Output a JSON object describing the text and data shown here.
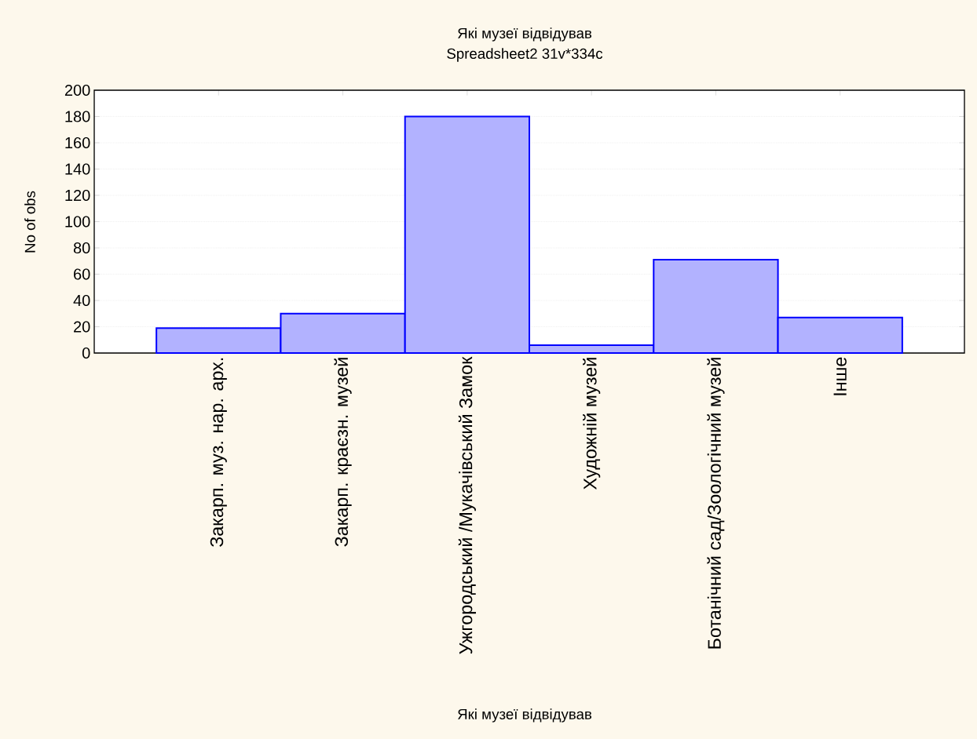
{
  "chart_data": {
    "type": "bar",
    "title": "Які музеї відвідував",
    "subtitle": "Spreadsheet2 31v*334c",
    "xlabel": "Які музеї відвідував",
    "ylabel": "No of obs",
    "categories": [
      "Закарп. муз. нар. арх.",
      "Закарп. краєзн. музей",
      "Ужгородський /Мукачівський Замок",
      "Художній музей",
      "Ботанічний сад/Зоологічний музей",
      "Інше"
    ],
    "values": [
      19,
      30,
      180,
      6,
      71,
      27
    ],
    "color": "#0000ff",
    "ylim": [
      0,
      200
    ],
    "yticks": [
      0,
      20,
      40,
      60,
      80,
      100,
      120,
      140,
      160,
      180,
      200
    ],
    "grid": "y"
  }
}
